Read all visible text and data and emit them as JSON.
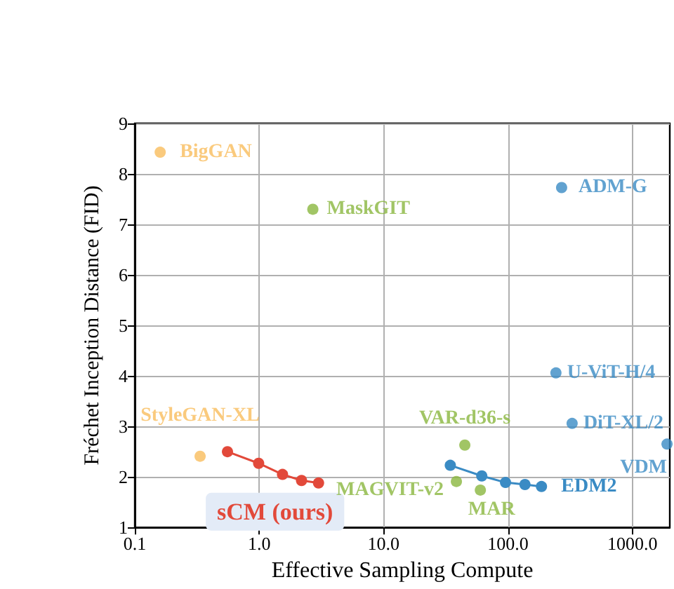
{
  "chart_data": {
    "type": "scatter",
    "xlabel": "Effective Sampling Compute",
    "ylabel": "Fréchet Inception Distance (FID)",
    "log": "x",
    "grid": true,
    "legend": false,
    "marker": "circle",
    "xlim": [
      0.1,
      2000
    ],
    "xticks": [
      {
        "value": 0.1,
        "label": "0.1"
      },
      {
        "value": 1,
        "label": "1.0"
      },
      {
        "value": 10,
        "label": "10.0"
      },
      {
        "value": 100,
        "label": "100.0"
      },
      {
        "value": 1000,
        "label": "1000.0"
      }
    ],
    "ylim": [
      1,
      9
    ],
    "yticks": [
      1,
      2,
      3,
      4,
      5,
      6,
      7,
      8,
      9
    ],
    "series": [
      {
        "name": "BigGAN",
        "color": "#f9bd5c",
        "x": [
          0.16
        ],
        "values": [
          8.43
        ]
      },
      {
        "name": "StyleGAN-XL",
        "color": "#f9bd5c",
        "x": [
          0.335
        ],
        "values": [
          2.41
        ]
      },
      {
        "name": "MaskGIT",
        "color": "#8ab73e",
        "x": [
          2.7
        ],
        "values": [
          7.3
        ]
      },
      {
        "name": "sCM (ours)",
        "type": "line",
        "color": "#e2493a",
        "x": [
          0.556,
          0.99,
          1.54,
          2.19,
          3.0
        ],
        "values": [
          2.5,
          2.27,
          2.05,
          1.93,
          1.88
        ]
      },
      {
        "name": "VAR-d36-s",
        "color": "#8ab73e",
        "x": [
          45
        ],
        "values": [
          2.63
        ]
      },
      {
        "name": "MAGVIT-v2",
        "color": "#8ab73e",
        "x": [
          38.5
        ],
        "values": [
          1.91
        ]
      },
      {
        "name": "MAR",
        "color": "#8ab73e",
        "x": [
          60
        ],
        "values": [
          1.74
        ]
      },
      {
        "name": "EDM2",
        "type": "line",
        "color": "#3a8bc4",
        "x": [
          34.4,
          61.6,
          95.6,
          137,
          186
        ],
        "values": [
          2.23,
          2.02,
          1.89,
          1.85,
          1.81
        ]
      },
      {
        "name": "ADM-G",
        "color": "#3a8bc4",
        "x": [
          270
        ],
        "values": [
          7.73
        ]
      },
      {
        "name": "U-ViT-H/4",
        "color": "#3a8bc4",
        "x": [
          243
        ],
        "values": [
          4.06
        ]
      },
      {
        "name": "DiT-XL/2",
        "color": "#3a8bc4",
        "x": [
          328
        ],
        "values": [
          3.06
        ]
      },
      {
        "name": "VDM",
        "color": "#3a8bc4",
        "x": [
          1900
        ],
        "values": [
          2.65
        ]
      }
    ]
  }
}
